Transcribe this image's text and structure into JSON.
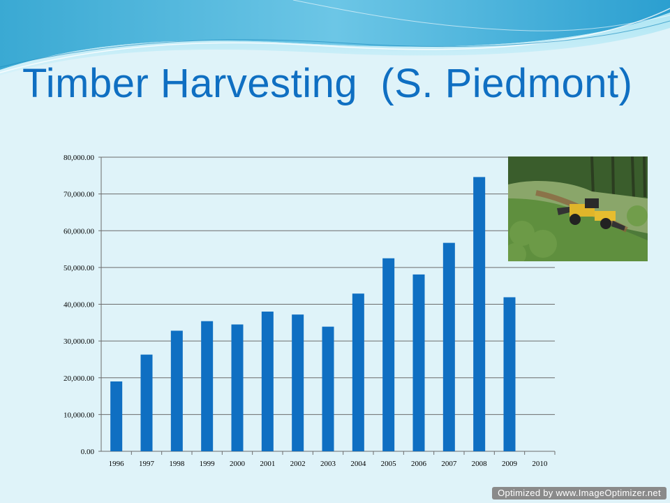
{
  "slide": {
    "title": "Timber Harvesting  (S. Piedmont)",
    "watermark": "Optimized by www.ImageOptimizer.net",
    "photo_icon": "logging-skidder-photo-icon"
  },
  "colors": {
    "background": "#dff3f9",
    "title": "#0f6fc2",
    "bar": "#0f6fc2",
    "wave_dark": "#2fa3cf",
    "wave_light": "#9fdcef"
  },
  "chart_data": {
    "type": "bar",
    "categories": [
      "1996",
      "1997",
      "1998",
      "1999",
      "2000",
      "2001",
      "2002",
      "2003",
      "2004",
      "2005",
      "2006",
      "2007",
      "2008",
      "2009",
      "2010"
    ],
    "values": [
      19000,
      26300,
      32800,
      35400,
      34500,
      38000,
      37200,
      33900,
      42900,
      52500,
      48100,
      56700,
      74600,
      41900,
      null
    ],
    "ylim": [
      0,
      80000
    ],
    "yticks": [
      0,
      10000,
      20000,
      30000,
      40000,
      50000,
      60000,
      70000,
      80000
    ],
    "ytick_labels": [
      "0.00",
      "10,000.00",
      "20,000.00",
      "30,000.00",
      "40,000.00",
      "50,000.00",
      "60,000.00",
      "70,000.00",
      "80,000.00"
    ],
    "grid": true,
    "title": "",
    "xlabel": "",
    "ylabel": ""
  }
}
